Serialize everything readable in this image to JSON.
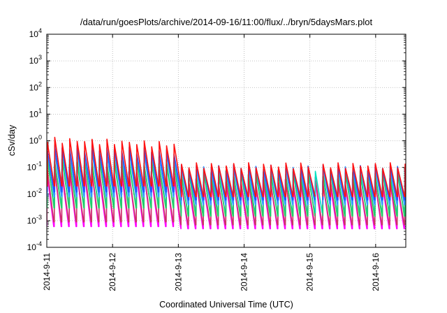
{
  "chart_data": {
    "type": "line",
    "title": "/data/run/goesPlots/archive/2014-09-16/11:00/flux/../bryn/5daysMars.plot",
    "xlabel": "Coordinated Universal Time (UTC)",
    "ylabel": "cSv/day",
    "yscale": "log",
    "ylim": [
      0.0001,
      10000
    ],
    "xlim": [
      "2014-09-11T00:00",
      "2014-09-16T11:00"
    ],
    "grid": true,
    "y_ticks": [
      {
        "value": 0.0001,
        "base": "10",
        "exp": "-4"
      },
      {
        "value": 0.001,
        "base": "10",
        "exp": "-3"
      },
      {
        "value": 0.01,
        "base": "10",
        "exp": "-2"
      },
      {
        "value": 0.1,
        "base": "10",
        "exp": "-1"
      },
      {
        "value": 1,
        "base": "10",
        "exp": "0"
      },
      {
        "value": 10,
        "base": "10",
        "exp": "1"
      },
      {
        "value": 100,
        "base": "10",
        "exp": "2"
      },
      {
        "value": 1000,
        "base": "10",
        "exp": "3"
      },
      {
        "value": 10000,
        "base": "10",
        "exp": "4"
      }
    ],
    "x_ticks": [
      {
        "date": "2014-09-11",
        "label": "2014-9-11"
      },
      {
        "date": "2014-09-12",
        "label": "2014-9-12"
      },
      {
        "date": "2014-09-13",
        "label": "2014-9-13"
      },
      {
        "date": "2014-09-14",
        "label": "2014-9-14"
      },
      {
        "date": "2014-09-15",
        "label": "2014-9-15"
      },
      {
        "date": "2014-09-16",
        "label": "2014-9-16"
      }
    ],
    "sawtooth_period_hours": 2.72,
    "series": [
      {
        "color": "#ff00ff",
        "peak_early": 0.09,
        "peak_late": 0.03,
        "trough_early": 0.0006,
        "trough_late": 0.0005
      },
      {
        "color": "#cc3366",
        "peak_early": 0.11,
        "peak_late": 0.035,
        "trough_early": 0.0009,
        "trough_late": 0.0007
      },
      {
        "color": "#00e0c0",
        "peak_early": 0.2,
        "peak_late": 0.06,
        "trough_early": 0.004,
        "trough_late": 0.002
      },
      {
        "color": "#22cc66",
        "peak_early": 0.25,
        "peak_late": 0.07,
        "trough_early": 0.003,
        "trough_late": 0.0015
      },
      {
        "color": "#3399ff",
        "peak_early": 0.45,
        "peak_late": 0.09,
        "trough_early": 0.008,
        "trough_late": 0.004
      },
      {
        "color": "#2255ff",
        "peak_early": 0.6,
        "peak_late": 0.1,
        "trough_early": 0.012,
        "trough_late": 0.006
      },
      {
        "color": "#ff1111",
        "peak_early": 1.1,
        "peak_late": 0.12,
        "trough_early": 0.02,
        "trough_late": 0.008
      }
    ]
  }
}
